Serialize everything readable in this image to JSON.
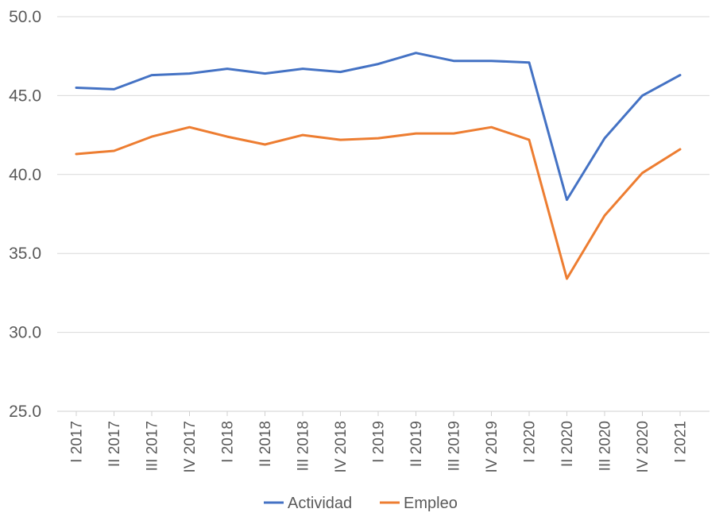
{
  "chart_data": {
    "type": "line",
    "title": "",
    "xlabel": "",
    "ylabel": "",
    "categories": [
      "I 2017",
      "II 2017",
      "III 2017",
      "IV 2017",
      "I 2018",
      "II 2018",
      "III 2018",
      "IV 2018",
      "I 2019",
      "II 2019",
      "III 2019",
      "IV 2019",
      "I 2020",
      "II 2020",
      "III 2020",
      "IV 2020",
      "I 2021"
    ],
    "ylim": [
      25,
      50
    ],
    "yticks": [
      25,
      30,
      35,
      40,
      45,
      50
    ],
    "ytick_labels": [
      "25.0",
      "30.0",
      "35.0",
      "40.0",
      "45.0",
      "50.0"
    ],
    "grid": true,
    "legend_position": "bottom",
    "series": [
      {
        "name": "Actividad",
        "color": "#4472C4",
        "values": [
          45.5,
          45.4,
          46.3,
          46.4,
          46.7,
          46.4,
          46.7,
          46.5,
          47.0,
          47.7,
          47.2,
          47.2,
          47.1,
          38.4,
          42.3,
          45.0,
          46.3
        ]
      },
      {
        "name": "Empleo",
        "color": "#ED7D31",
        "values": [
          41.3,
          41.5,
          42.4,
          43.0,
          42.4,
          41.9,
          42.5,
          42.2,
          42.3,
          42.6,
          42.6,
          43.0,
          42.2,
          33.4,
          37.4,
          40.1,
          41.6
        ]
      }
    ]
  }
}
